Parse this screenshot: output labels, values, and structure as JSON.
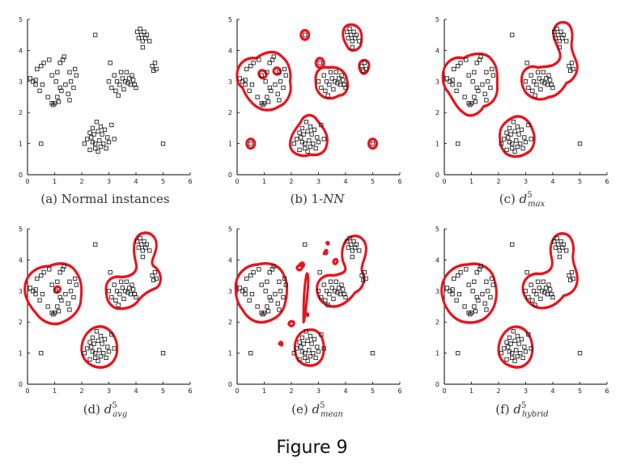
{
  "figure_caption": "Figure 9",
  "colors": {
    "boundary": "#e8141e",
    "points": "#222222",
    "axes": "#000000"
  },
  "chart_data": [
    {
      "type": "scatter",
      "id": "a",
      "caption": {
        "label": "(a)",
        "text": "Normal instances",
        "base": "",
        "sub": "",
        "sup": ""
      },
      "xlim": [
        0,
        6
      ],
      "ylim": [
        0,
        5
      ],
      "x_ticks": [
        "0",
        "1",
        "2",
        "3",
        "4",
        "5",
        "6"
      ],
      "y_ticks": [
        "0",
        "1",
        "2",
        "3",
        "4",
        "5"
      ],
      "boundary": "none",
      "legend": "none",
      "grid": false
    },
    {
      "type": "scatter",
      "id": "b",
      "caption": {
        "label": "(b)",
        "text": "1-",
        "base": "",
        "sub": "",
        "sup": "",
        "italic": "NN"
      },
      "xlim": [
        0,
        6
      ],
      "ylim": [
        0,
        5
      ],
      "x_ticks": [
        "0",
        "1",
        "2",
        "3",
        "4",
        "5",
        "6"
      ],
      "y_ticks": [
        "0",
        "1",
        "2",
        "3",
        "4",
        "5"
      ],
      "boundary": "1-NN",
      "legend": "none",
      "grid": false
    },
    {
      "type": "scatter",
      "id": "c",
      "caption": {
        "label": "(c)",
        "text": "",
        "base": "d",
        "sub": "max",
        "sup": "5"
      },
      "xlim": [
        0,
        6
      ],
      "ylim": [
        0,
        5
      ],
      "x_ticks": [
        "0",
        "1",
        "2",
        "3",
        "4",
        "5",
        "6"
      ],
      "y_ticks": [
        "0",
        "1",
        "2",
        "3",
        "4",
        "5"
      ],
      "boundary": "max",
      "legend": "none",
      "grid": false
    },
    {
      "type": "scatter",
      "id": "d",
      "caption": {
        "label": "(d)",
        "text": "",
        "base": "d",
        "sub": "avg",
        "sup": "5"
      },
      "xlim": [
        0,
        6
      ],
      "ylim": [
        0,
        5
      ],
      "x_ticks": [
        "0",
        "1",
        "2",
        "3",
        "4",
        "5",
        "6"
      ],
      "y_ticks": [
        "0",
        "1",
        "2",
        "3",
        "4",
        "5"
      ],
      "boundary": "avg",
      "legend": "none",
      "grid": false
    },
    {
      "type": "scatter",
      "id": "e",
      "caption": {
        "label": "(e)",
        "text": "",
        "base": "d",
        "sub": "mean",
        "sup": "5"
      },
      "xlim": [
        0,
        6
      ],
      "ylim": [
        0,
        5
      ],
      "x_ticks": [
        "0",
        "1",
        "2",
        "3",
        "4",
        "5",
        "6"
      ],
      "y_ticks": [
        "0",
        "1",
        "2",
        "3",
        "4",
        "5"
      ],
      "boundary": "mean",
      "legend": "none",
      "grid": false
    },
    {
      "type": "scatter",
      "id": "f",
      "caption": {
        "label": "(f)",
        "text": "",
        "base": "d",
        "sub": "hybrid",
        "sup": "5"
      },
      "xlim": [
        0,
        6
      ],
      "ylim": [
        0,
        5
      ],
      "x_ticks": [
        "0",
        "1",
        "2",
        "3",
        "4",
        "5",
        "6"
      ],
      "y_ticks": [
        "0",
        "1",
        "2",
        "3",
        "4",
        "5"
      ],
      "boundary": "hybrid",
      "legend": "none",
      "grid": false
    }
  ],
  "points": [
    [
      0.1,
      3.1
    ],
    [
      0.2,
      3.0
    ],
    [
      0.3,
      2.9
    ],
    [
      0.35,
      3.4
    ],
    [
      0.3,
      3.05
    ],
    [
      0.5,
      3.5
    ],
    [
      0.55,
      2.9
    ],
    [
      0.6,
      3.6
    ],
    [
      0.8,
      3.7
    ],
    [
      0.75,
      2.5
    ],
    [
      0.9,
      2.3
    ],
    [
      0.95,
      2.25
    ],
    [
      1.0,
      2.3
    ],
    [
      1.1,
      2.5
    ],
    [
      1.05,
      3.0
    ],
    [
      1.1,
      3.3
    ],
    [
      1.2,
      3.6
    ],
    [
      1.3,
      3.7
    ],
    [
      1.35,
      3.8
    ],
    [
      1.25,
      2.7
    ],
    [
      1.2,
      2.8
    ],
    [
      1.4,
      2.9
    ],
    [
      1.5,
      2.6
    ],
    [
      1.55,
      2.4
    ],
    [
      1.6,
      3.0
    ],
    [
      1.7,
      2.8
    ],
    [
      1.75,
      3.4
    ],
    [
      1.8,
      3.2
    ],
    [
      1.55,
      3.3
    ],
    [
      0.9,
      3.2
    ],
    [
      0.45,
      2.7
    ],
    [
      1.15,
      2.35
    ],
    [
      2.1,
      1.0
    ],
    [
      2.2,
      1.15
    ],
    [
      2.3,
      0.8
    ],
    [
      2.35,
      1.2
    ],
    [
      2.4,
      1.5
    ],
    [
      2.45,
      1.3
    ],
    [
      2.5,
      1.0
    ],
    [
      2.5,
      0.85
    ],
    [
      2.55,
      1.7
    ],
    [
      2.6,
      1.4
    ],
    [
      2.65,
      1.1
    ],
    [
      2.7,
      0.9
    ],
    [
      2.75,
      1.3
    ],
    [
      2.8,
      1.0
    ],
    [
      2.85,
      1.45
    ],
    [
      2.9,
      0.85
    ],
    [
      2.95,
      1.2
    ],
    [
      3.0,
      1.05
    ],
    [
      3.1,
      1.6
    ],
    [
      2.6,
      0.75
    ],
    [
      2.4,
      1.05
    ],
    [
      2.3,
      1.35
    ],
    [
      3.2,
      1.15
    ],
    [
      2.7,
      1.55
    ],
    [
      3.0,
      3.0
    ],
    [
      3.1,
      2.8
    ],
    [
      3.2,
      3.2
    ],
    [
      3.25,
      2.7
    ],
    [
      3.3,
      3.0
    ],
    [
      3.4,
      2.9
    ],
    [
      3.5,
      3.1
    ],
    [
      3.55,
      2.75
    ],
    [
      3.6,
      3.0
    ],
    [
      3.65,
      3.3
    ],
    [
      3.7,
      2.95
    ],
    [
      3.75,
      3.1
    ],
    [
      3.8,
      2.9
    ],
    [
      3.85,
      3.2
    ],
    [
      3.9,
      3.05
    ],
    [
      3.45,
      3.3
    ],
    [
      3.35,
      2.55
    ],
    [
      3.95,
      2.9
    ],
    [
      4.0,
      2.8
    ],
    [
      4.05,
      4.6
    ],
    [
      4.1,
      4.4
    ],
    [
      4.15,
      4.7
    ],
    [
      4.2,
      4.5
    ],
    [
      4.25,
      4.3
    ],
    [
      4.3,
      4.6
    ],
    [
      4.35,
      4.4
    ],
    [
      4.4,
      4.5
    ],
    [
      4.5,
      4.3
    ],
    [
      4.25,
      4.1
    ],
    [
      4.6,
      3.5
    ],
    [
      4.7,
      3.6
    ],
    [
      4.75,
      3.4
    ],
    [
      4.65,
      3.35
    ],
    [
      2.5,
      4.5
    ],
    [
      3.05,
      3.6
    ],
    [
      0.5,
      1.0
    ],
    [
      5.0,
      1.0
    ]
  ]
}
